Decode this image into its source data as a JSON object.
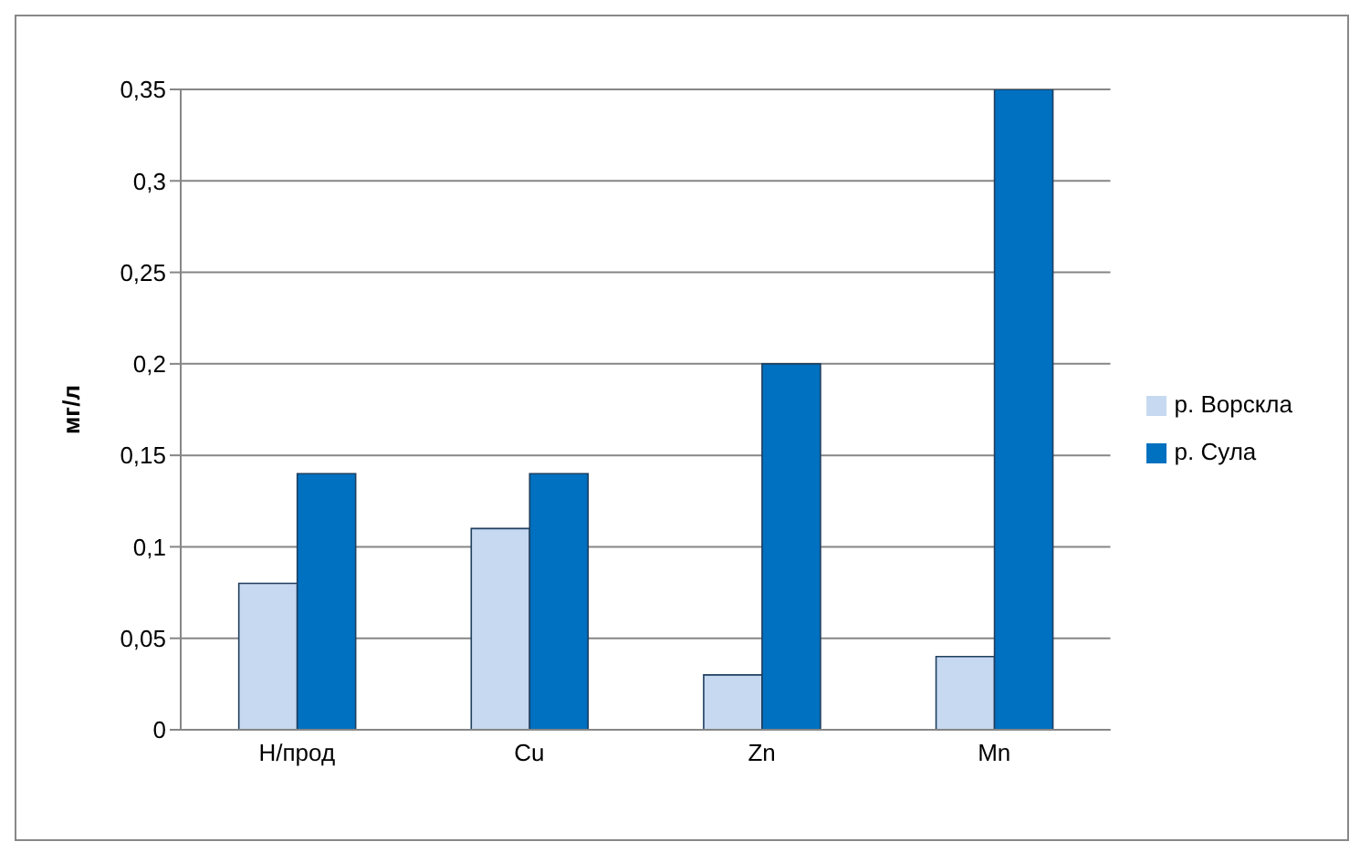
{
  "chart_data": {
    "type": "bar",
    "ylabel": "мг/л",
    "categories": [
      "Н/прод",
      "Cu",
      "Zn",
      "Mn"
    ],
    "series": [
      {
        "name": "р. Ворскла",
        "color": "#c6d9f1",
        "values": [
          0.08,
          0.11,
          0.03,
          0.04
        ]
      },
      {
        "name": "р. Сула",
        "color": "#0070c0",
        "values": [
          0.14,
          0.14,
          0.2,
          0.35
        ]
      }
    ],
    "ylim": [
      0,
      0.35
    ],
    "yticks": [
      {
        "value": 0,
        "label": "0"
      },
      {
        "value": 0.05,
        "label": "0,05"
      },
      {
        "value": 0.1,
        "label": "0,1"
      },
      {
        "value": 0.15,
        "label": "0,15"
      },
      {
        "value": 0.2,
        "label": "0,2"
      },
      {
        "value": 0.25,
        "label": "0,25"
      },
      {
        "value": 0.3,
        "label": "0,3"
      },
      {
        "value": 0.35,
        "label": "0,35"
      }
    ],
    "grid": "y",
    "legend": "right"
  }
}
